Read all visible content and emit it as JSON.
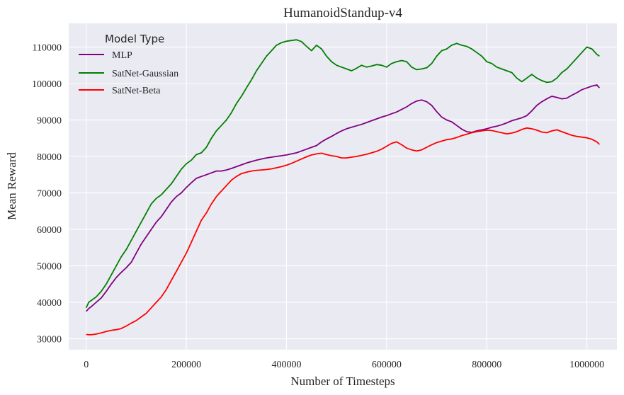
{
  "chart_data": {
    "type": "line",
    "title": "HumanoidStandup-v4",
    "xlabel": "Number of Timesteps",
    "ylabel": "Mean Reward",
    "xlim": [
      -35000,
      1060000
    ],
    "ylim": [
      27000,
      116500
    ],
    "xticks": [
      0,
      200000,
      400000,
      600000,
      800000,
      1000000
    ],
    "yticks": [
      30000,
      40000,
      50000,
      60000,
      70000,
      80000,
      90000,
      100000,
      110000
    ],
    "grid": true,
    "background": "#eaeaf2",
    "legend": {
      "title": "Model Type",
      "placement": "top-left"
    },
    "series": [
      {
        "name": "MLP",
        "color": "#800080",
        "x": [
          0,
          5000,
          10000,
          20000,
          30000,
          40000,
          50000,
          60000,
          70000,
          80000,
          90000,
          100000,
          110000,
          120000,
          130000,
          140000,
          150000,
          160000,
          170000,
          180000,
          190000,
          200000,
          210000,
          220000,
          230000,
          240000,
          250000,
          260000,
          270000,
          280000,
          290000,
          300000,
          310000,
          320000,
          330000,
          340000,
          350000,
          360000,
          370000,
          380000,
          390000,
          400000,
          410000,
          420000,
          430000,
          440000,
          450000,
          460000,
          470000,
          480000,
          490000,
          500000,
          510000,
          520000,
          530000,
          540000,
          550000,
          560000,
          570000,
          580000,
          590000,
          600000,
          610000,
          620000,
          630000,
          640000,
          650000,
          660000,
          670000,
          680000,
          690000,
          700000,
          710000,
          720000,
          730000,
          740000,
          750000,
          760000,
          770000,
          780000,
          790000,
          800000,
          810000,
          820000,
          830000,
          840000,
          850000,
          860000,
          870000,
          880000,
          890000,
          900000,
          910000,
          920000,
          930000,
          940000,
          950000,
          960000,
          970000,
          980000,
          990000,
          1000000,
          1010000,
          1020000,
          1025000
        ],
        "y": [
          37500,
          38300,
          38800,
          40000,
          41200,
          43000,
          45000,
          46800,
          48200,
          49500,
          51000,
          53500,
          56000,
          58000,
          60000,
          62000,
          63500,
          65500,
          67500,
          69000,
          70000,
          71500,
          72800,
          74000,
          74500,
          75000,
          75500,
          76000,
          76000,
          76300,
          76700,
          77200,
          77700,
          78200,
          78600,
          79000,
          79300,
          79600,
          79800,
          80000,
          80200,
          80400,
          80700,
          81000,
          81500,
          82000,
          82500,
          83000,
          84000,
          84800,
          85500,
          86300,
          87000,
          87600,
          88000,
          88400,
          88800,
          89300,
          89800,
          90300,
          90800,
          91200,
          91700,
          92200,
          92900,
          93600,
          94500,
          95200,
          95500,
          95000,
          94000,
          92300,
          90800,
          90000,
          89500,
          88500,
          87500,
          86800,
          86600,
          87000,
          87300,
          87600,
          88000,
          88300,
          88700,
          89200,
          89800,
          90200,
          90600,
          91200,
          92500,
          94000,
          95000,
          95800,
          96500,
          96200,
          95800,
          96000,
          96800,
          97500,
          98300,
          98800,
          99300,
          99600,
          98800
        ]
      },
      {
        "name": "SatNet-Gaussian",
        "color": "#008000",
        "x": [
          0,
          5000,
          10000,
          20000,
          30000,
          40000,
          50000,
          60000,
          70000,
          80000,
          90000,
          100000,
          110000,
          120000,
          130000,
          140000,
          150000,
          160000,
          170000,
          180000,
          190000,
          200000,
          210000,
          220000,
          230000,
          240000,
          250000,
          260000,
          270000,
          280000,
          290000,
          300000,
          310000,
          320000,
          330000,
          340000,
          350000,
          360000,
          370000,
          380000,
          390000,
          400000,
          410000,
          420000,
          430000,
          440000,
          450000,
          460000,
          470000,
          480000,
          490000,
          500000,
          510000,
          520000,
          530000,
          540000,
          550000,
          560000,
          570000,
          580000,
          590000,
          600000,
          610000,
          620000,
          630000,
          640000,
          650000,
          660000,
          670000,
          680000,
          690000,
          700000,
          710000,
          720000,
          730000,
          740000,
          750000,
          760000,
          770000,
          780000,
          790000,
          800000,
          810000,
          820000,
          830000,
          840000,
          850000,
          860000,
          870000,
          880000,
          890000,
          900000,
          910000,
          920000,
          930000,
          940000,
          950000,
          960000,
          970000,
          980000,
          990000,
          1000000,
          1010000,
          1020000,
          1025000
        ],
        "y": [
          38500,
          40000,
          40500,
          41500,
          43000,
          45000,
          47500,
          50000,
          52500,
          54500,
          57000,
          59500,
          62000,
          64500,
          67000,
          68500,
          69500,
          71000,
          72500,
          74500,
          76500,
          78000,
          79000,
          80500,
          81000,
          82500,
          85000,
          87000,
          88500,
          90000,
          92000,
          94500,
          96500,
          98800,
          101000,
          103500,
          105500,
          107500,
          109000,
          110500,
          111200,
          111600,
          111800,
          112000,
          111500,
          110200,
          109000,
          110500,
          109500,
          107500,
          106000,
          105000,
          104500,
          104000,
          103500,
          104200,
          105000,
          104500,
          104800,
          105200,
          105000,
          104500,
          105500,
          106000,
          106300,
          106000,
          104500,
          103800,
          104000,
          104300,
          105500,
          107500,
          109000,
          109500,
          110500,
          111000,
          110500,
          110200,
          109500,
          108500,
          107500,
          106000,
          105500,
          104500,
          104000,
          103500,
          103000,
          101500,
          100500,
          101500,
          102500,
          101500,
          100800,
          100300,
          100500,
          101500,
          103000,
          104000,
          105500,
          107000,
          108500,
          110000,
          109500,
          108000,
          107500
        ]
      },
      {
        "name": "SatNet-Beta",
        "color": "#ff0000",
        "x": [
          0,
          5000,
          10000,
          20000,
          30000,
          40000,
          50000,
          60000,
          70000,
          80000,
          90000,
          100000,
          110000,
          120000,
          130000,
          140000,
          150000,
          160000,
          170000,
          180000,
          190000,
          200000,
          210000,
          220000,
          230000,
          240000,
          250000,
          260000,
          270000,
          280000,
          290000,
          300000,
          310000,
          320000,
          330000,
          340000,
          350000,
          360000,
          370000,
          380000,
          390000,
          400000,
          410000,
          420000,
          430000,
          440000,
          450000,
          460000,
          470000,
          480000,
          490000,
          500000,
          510000,
          520000,
          530000,
          540000,
          550000,
          560000,
          570000,
          580000,
          590000,
          600000,
          610000,
          620000,
          630000,
          640000,
          650000,
          660000,
          670000,
          680000,
          690000,
          700000,
          710000,
          720000,
          730000,
          740000,
          750000,
          760000,
          770000,
          780000,
          790000,
          800000,
          810000,
          820000,
          830000,
          840000,
          850000,
          860000,
          870000,
          880000,
          890000,
          900000,
          910000,
          920000,
          930000,
          940000,
          950000,
          960000,
          970000,
          980000,
          990000,
          1000000,
          1010000,
          1020000,
          1025000
        ],
        "y": [
          31200,
          31100,
          31100,
          31300,
          31600,
          32000,
          32300,
          32500,
          32800,
          33500,
          34300,
          35000,
          36000,
          37000,
          38500,
          40000,
          41500,
          43500,
          46000,
          48500,
          51000,
          53500,
          56500,
          59500,
          62500,
          64500,
          67000,
          69000,
          70500,
          72000,
          73500,
          74500,
          75300,
          75700,
          76000,
          76200,
          76300,
          76400,
          76600,
          76900,
          77200,
          77600,
          78100,
          78700,
          79300,
          79900,
          80400,
          80700,
          80900,
          80500,
          80200,
          80000,
          79600,
          79600,
          79800,
          80000,
          80300,
          80600,
          81000,
          81400,
          82000,
          82800,
          83600,
          84000,
          83200,
          82300,
          81800,
          81500,
          81800,
          82500,
          83200,
          83800,
          84200,
          84600,
          84800,
          85200,
          85700,
          86100,
          86500,
          86800,
          87000,
          87200,
          87100,
          86800,
          86500,
          86200,
          86400,
          86800,
          87400,
          87800,
          87600,
          87200,
          86700,
          86500,
          87000,
          87300,
          86800,
          86300,
          85800,
          85500,
          85300,
          85100,
          84700,
          84000,
          83300
        ]
      }
    ]
  }
}
